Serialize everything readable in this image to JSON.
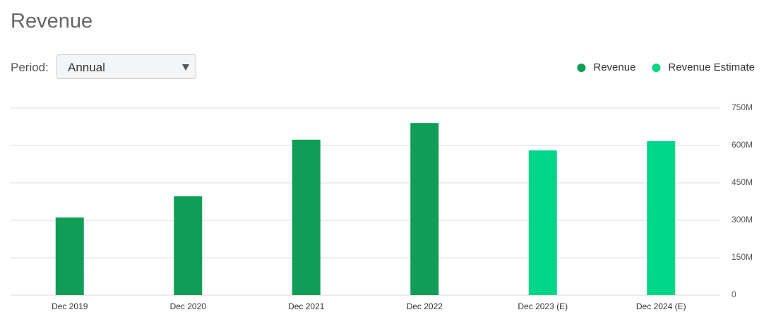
{
  "period": {
    "label": "Period:",
    "value": "Annual"
  },
  "chart_data": {
    "type": "bar",
    "title": "Revenue",
    "categories": [
      "Dec 2019",
      "Dec 2020",
      "Dec 2021",
      "Dec 2022",
      "Dec 2023 (E)",
      "Dec 2024 (E)"
    ],
    "series": [
      {
        "name": "Revenue",
        "color": "#109d58",
        "values": [
          311,
          396,
          623,
          690,
          null,
          null
        ]
      },
      {
        "name": "Revenue Estimate",
        "color": "#00d68a",
        "values": [
          null,
          null,
          null,
          null,
          580,
          617
        ]
      }
    ],
    "ylim": [
      0,
      750
    ],
    "yticks": [
      0,
      {
        "value": 150,
        "label": "150M"
      },
      {
        "value": 300,
        "label": "300M"
      },
      {
        "value": 450,
        "label": "450M"
      },
      {
        "value": 600,
        "label": "600M"
      },
      {
        "value": 750,
        "label": "750M"
      }
    ],
    "grid": true,
    "legend": "top-right"
  }
}
